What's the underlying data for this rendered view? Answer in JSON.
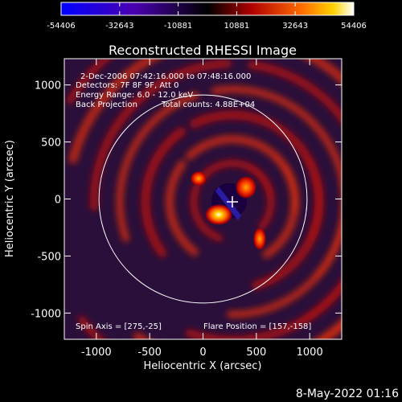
{
  "chart_data": {
    "type": "heatmap",
    "title": "Reconstructed RHESSI Image",
    "xlabel": "Heliocentric X (arcsec)",
    "ylabel": "Heliocentric Y (arcsec)",
    "xlim": [
      -1300,
      1300
    ],
    "ylim": [
      -1230,
      1230
    ],
    "x_ticks": [
      -1000,
      -500,
      0,
      500,
      1000
    ],
    "y_ticks": [
      -1000,
      -500,
      0,
      500,
      1000
    ],
    "colorbar": {
      "min": -54406,
      "max": 54406,
      "tick_values": [
        -54406,
        -32643,
        -10881,
        10881,
        32643,
        54406
      ],
      "tick_labels": [
        "-54406",
        "-32643",
        "-10881",
        "10881",
        "32643",
        "54406"
      ]
    },
    "annotations": {
      "time_range": "2-Dec-2006 07:42:16.000 to 07:48:16.000",
      "detectors": "Detectors: 7F 8F 9F, Att 0",
      "energy_range": "Energy Range: 6.0 - 12.0 keV",
      "method": "Back Projection",
      "total_counts": "Total counts: 4.88E+04",
      "spin_axis": "Spin Axis = [275,-25]",
      "flare_position": "Flare Position = [157,-158]"
    },
    "solar_disk_radius_arcsec": 975,
    "spin_axis": [
      275,
      -25
    ],
    "flare_position": [
      157,
      -158
    ]
  },
  "footer_date": "8-May-2022 01:16"
}
